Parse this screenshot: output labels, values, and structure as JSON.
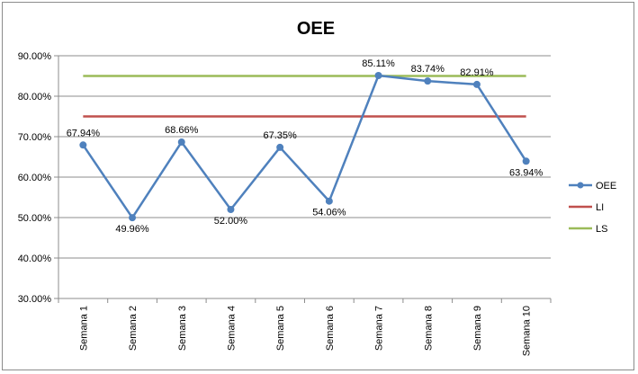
{
  "chart_data": {
    "type": "line",
    "title": "OEE",
    "xlabel": "",
    "ylabel": "",
    "categories": [
      "Semana 1",
      "Semana 2",
      "Semana 3",
      "Semana 4",
      "Semana 5",
      "Semana 6",
      "Semana 7",
      "Semana 8",
      "Semana 9",
      "Semana 10"
    ],
    "y_ticks": [
      "30.00%",
      "40.00%",
      "50.00%",
      "60.00%",
      "70.00%",
      "80.00%",
      "90.00%"
    ],
    "ylim": [
      30,
      90
    ],
    "grid": true,
    "legend": "right",
    "series": [
      {
        "name": "OEE",
        "color": "#4f81bd",
        "marker": "circle",
        "values": [
          67.94,
          49.96,
          68.66,
          52.0,
          67.35,
          54.06,
          85.11,
          83.74,
          82.91,
          63.94
        ],
        "labels": [
          "67.94%",
          "49.96%",
          "68.66%",
          "52.00%",
          "67.35%",
          "54.06%",
          "85.11%",
          "83.74%",
          "82.91%",
          "63.94%"
        ]
      },
      {
        "name": "LI",
        "color": "#c0504d",
        "values": [
          75,
          75,
          75,
          75,
          75,
          75,
          75,
          75,
          75,
          75
        ]
      },
      {
        "name": "LS",
        "color": "#9bbb59",
        "values": [
          85,
          85,
          85,
          85,
          85,
          85,
          85,
          85,
          85,
          85
        ]
      }
    ]
  }
}
